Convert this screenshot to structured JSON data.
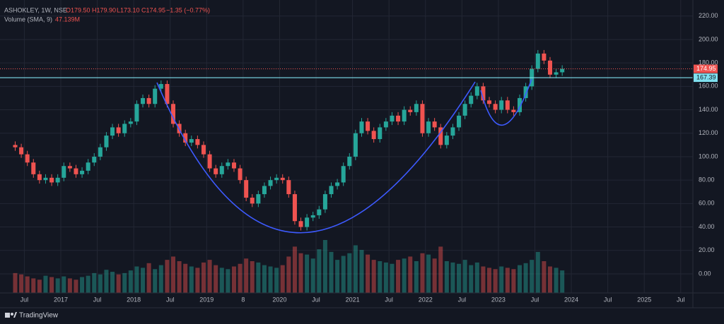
{
  "chart_data": {
    "type": "candlestick",
    "symbol": "ASHOKLEY, 1W, NSE",
    "ohlc_legend": [
      "O179.50",
      "H179.90",
      "L173.10",
      "C174.95",
      "−1.35 (−0.77%)"
    ],
    "volume_legend": "Volume (SMA, 9)",
    "volume_value": "47.139M",
    "brand": "TradingView",
    "x": [
      "2016-05",
      "2016-06",
      "2016-07",
      "2016-08",
      "2016-09",
      "2016-10",
      "2016-11",
      "2016-12",
      "2017-01",
      "2017-02",
      "2017-03",
      "2017-04",
      "2017-05",
      "2017-06",
      "2017-07",
      "2017-08",
      "2017-09",
      "2017-10",
      "2017-11",
      "2017-12",
      "2018-01",
      "2018-02",
      "2018-03",
      "2018-04",
      "2018-05",
      "2018-06",
      "2018-07",
      "2018-08",
      "2018-09",
      "2018-10",
      "2018-11",
      "2018-12",
      "2019-01",
      "2019-02",
      "2019-03",
      "2019-04",
      "2019-05",
      "2019-06",
      "2019-07",
      "2019-08",
      "2019-09",
      "2019-10",
      "2019-11",
      "2019-12",
      "2020-01",
      "2020-02",
      "2020-03",
      "2020-04",
      "2020-05",
      "2020-06",
      "2020-07",
      "2020-08",
      "2020-09",
      "2020-10",
      "2020-11",
      "2020-12",
      "2021-01",
      "2021-02",
      "2021-03",
      "2021-04",
      "2021-05",
      "2021-06",
      "2021-07",
      "2021-08",
      "2021-09",
      "2021-10",
      "2021-11",
      "2021-12",
      "2022-01",
      "2022-02",
      "2022-03",
      "2022-04",
      "2022-05",
      "2022-06",
      "2022-07",
      "2022-08",
      "2022-09",
      "2022-10",
      "2022-11",
      "2022-12",
      "2023-01",
      "2023-02",
      "2023-03",
      "2023-04",
      "2023-05",
      "2023-06",
      "2023-07",
      "2023-08",
      "2023-09",
      "2023-10",
      "2023-11"
    ],
    "open": [
      110,
      108,
      102,
      95,
      85,
      80,
      82,
      78,
      82,
      92,
      90,
      85,
      88,
      95,
      100,
      108,
      118,
      125,
      120,
      128,
      130,
      145,
      150,
      145,
      158,
      162,
      145,
      128,
      120,
      112,
      115,
      110,
      102,
      90,
      85,
      92,
      95,
      90,
      80,
      65,
      60,
      68,
      75,
      80,
      82,
      80,
      68,
      45,
      40,
      48,
      50,
      55,
      68,
      75,
      78,
      92,
      100,
      120,
      130,
      122,
      115,
      125,
      130,
      135,
      130,
      140,
      138,
      145,
      120,
      130,
      125,
      110,
      118,
      125,
      135,
      145,
      152,
      160,
      148,
      145,
      140,
      148,
      140,
      138,
      150,
      160,
      175,
      188,
      182,
      170,
      172
    ],
    "high": [
      113,
      111,
      105,
      98,
      88,
      85,
      85,
      85,
      95,
      95,
      93,
      91,
      98,
      103,
      111,
      121,
      128,
      128,
      131,
      133,
      148,
      153,
      153,
      161,
      165,
      165,
      148,
      131,
      123,
      118,
      118,
      113,
      105,
      93,
      95,
      98,
      98,
      93,
      83,
      68,
      71,
      78,
      83,
      85,
      85,
      83,
      71,
      48,
      51,
      53,
      58,
      71,
      78,
      81,
      95,
      103,
      123,
      133,
      133,
      125,
      128,
      133,
      138,
      138,
      143,
      143,
      148,
      148,
      133,
      133,
      128,
      121,
      128,
      138,
      148,
      155,
      163,
      163,
      151,
      148,
      151,
      151,
      143,
      153,
      163,
      178,
      191,
      191,
      185,
      175,
      178
    ],
    "low": [
      105,
      99,
      92,
      82,
      77,
      77,
      75,
      75,
      79,
      87,
      82,
      82,
      85,
      92,
      97,
      105,
      115,
      117,
      117,
      125,
      127,
      142,
      142,
      142,
      155,
      142,
      125,
      117,
      109,
      109,
      107,
      99,
      87,
      82,
      82,
      89,
      87,
      77,
      62,
      57,
      57,
      65,
      72,
      77,
      77,
      65,
      42,
      37,
      37,
      45,
      47,
      52,
      65,
      72,
      75,
      89,
      97,
      117,
      119,
      112,
      112,
      122,
      127,
      127,
      127,
      135,
      135,
      117,
      117,
      122,
      107,
      107,
      115,
      122,
      132,
      142,
      149,
      145,
      142,
      137,
      137,
      137,
      135,
      135,
      147,
      157,
      172,
      179,
      167,
      167,
      169
    ],
    "close": [
      108,
      102,
      95,
      85,
      80,
      82,
      78,
      82,
      92,
      90,
      85,
      88,
      95,
      100,
      108,
      118,
      125,
      120,
      128,
      130,
      145,
      150,
      145,
      158,
      162,
      145,
      128,
      120,
      112,
      115,
      110,
      102,
      90,
      85,
      92,
      95,
      90,
      80,
      65,
      60,
      68,
      75,
      80,
      82,
      80,
      68,
      45,
      40,
      48,
      50,
      55,
      68,
      75,
      78,
      92,
      100,
      120,
      130,
      122,
      115,
      125,
      130,
      135,
      130,
      140,
      138,
      145,
      120,
      130,
      125,
      110,
      118,
      125,
      135,
      145,
      152,
      160,
      148,
      145,
      140,
      148,
      140,
      138,
      150,
      160,
      175,
      188,
      182,
      170,
      172,
      175
    ],
    "volume": [
      30,
      28,
      25,
      22,
      20,
      26,
      24,
      22,
      25,
      22,
      20,
      24,
      26,
      30,
      28,
      35,
      32,
      28,
      30,
      34,
      40,
      38,
      45,
      36,
      42,
      50,
      55,
      48,
      44,
      40,
      38,
      46,
      50,
      42,
      38,
      36,
      40,
      44,
      52,
      48,
      46,
      42,
      40,
      38,
      42,
      55,
      70,
      60,
      58,
      52,
      66,
      80,
      62,
      50,
      56,
      60,
      72,
      65,
      58,
      50,
      48,
      46,
      44,
      50,
      52,
      55,
      48,
      60,
      58,
      52,
      70,
      48,
      46,
      44,
      50,
      42,
      46,
      40,
      38,
      36,
      40,
      38,
      36,
      42,
      45,
      50,
      62,
      48,
      40,
      38,
      34
    ],
    "up_color": "#26a69a",
    "down_color": "#ef5350",
    "xlim": [
      "2016-03",
      "2025-09"
    ],
    "xticks": [
      {
        "value": "2016-07",
        "label": "Jul"
      },
      {
        "value": "2017-01",
        "label": "2017"
      },
      {
        "value": "2017-07",
        "label": "Jul"
      },
      {
        "value": "2018-01",
        "label": "2018"
      },
      {
        "value": "2018-07",
        "label": "Jul"
      },
      {
        "value": "2019-01",
        "label": "2019"
      },
      {
        "value": "2019-07",
        "label": "8"
      },
      {
        "value": "2020-01",
        "label": "2020"
      },
      {
        "value": "2020-07",
        "label": "Jul"
      },
      {
        "value": "2021-01",
        "label": "2021"
      },
      {
        "value": "2021-07",
        "label": "Jul"
      },
      {
        "value": "2022-01",
        "label": "2022"
      },
      {
        "value": "2022-07",
        "label": "Jul"
      },
      {
        "value": "2023-01",
        "label": "2023"
      },
      {
        "value": "2023-07",
        "label": "Jul"
      },
      {
        "value": "2024-01",
        "label": "2024"
      },
      {
        "value": "2024-07",
        "label": "Jul"
      },
      {
        "value": "2025-01",
        "label": "2025"
      },
      {
        "value": "2025-07",
        "label": "Jul"
      }
    ],
    "ylim": [
      -16.3,
      233.7
    ],
    "yticks": [
      {
        "value": 0,
        "label": "0.00"
      },
      {
        "value": 20,
        "label": "20.00"
      },
      {
        "value": 40,
        "label": "40.00"
      },
      {
        "value": 60,
        "label": "60.00"
      },
      {
        "value": 80,
        "label": "80.00"
      },
      {
        "value": 100,
        "label": "100.00"
      },
      {
        "value": 120,
        "label": "120.00"
      },
      {
        "value": 140,
        "label": "140.00"
      },
      {
        "value": 160,
        "label": "160.00"
      },
      {
        "value": 180,
        "label": "180.00"
      },
      {
        "value": 200,
        "label": "200.00"
      },
      {
        "value": 220,
        "label": "220.00"
      }
    ],
    "grid": true,
    "last_price": 174.95,
    "level": 167.39,
    "level_color": "#7fe0ef"
  }
}
